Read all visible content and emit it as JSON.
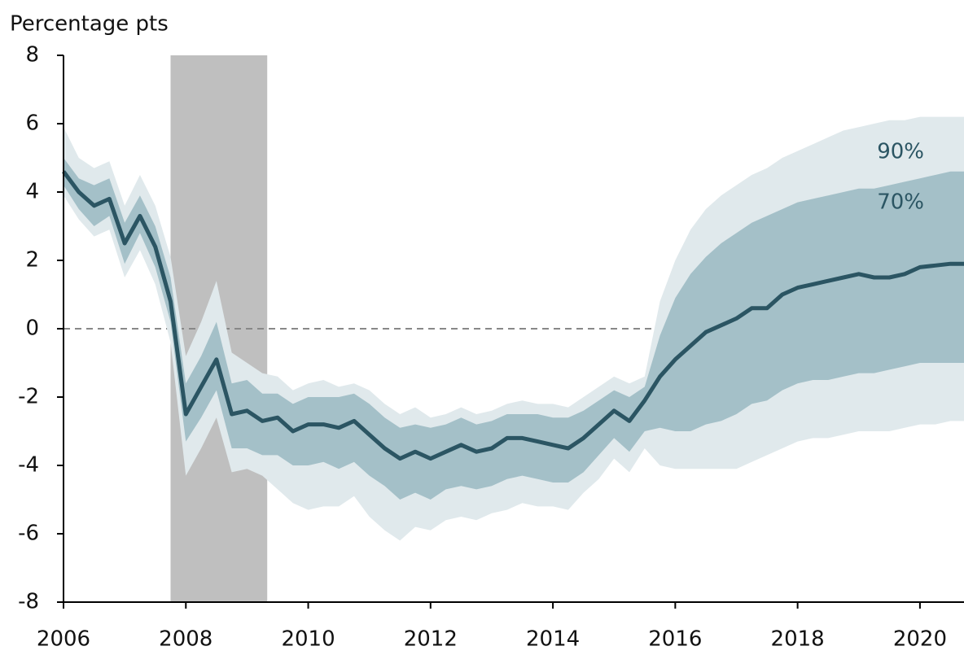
{
  "chart_data": {
    "type": "fan",
    "y_label": "Percentage pts",
    "xlim": [
      2006,
      2020.72
    ],
    "xticks": [
      2006,
      2008,
      2010,
      2012,
      2014,
      2016,
      2018,
      2020
    ],
    "ylim": [
      -8,
      8
    ],
    "yticks": [
      -8,
      -6,
      -4,
      -2,
      0,
      2,
      4,
      6,
      8
    ],
    "zero_line": true,
    "shading": [
      {
        "start": 2007.75,
        "end": 2009.33,
        "color": "#bfbfbf"
      }
    ],
    "x": [
      2006.0,
      2006.25,
      2006.5,
      2006.75,
      2007.0,
      2007.25,
      2007.5,
      2007.75,
      2008.0,
      2008.25,
      2008.5,
      2008.75,
      2009.0,
      2009.25,
      2009.5,
      2009.75,
      2010.0,
      2010.25,
      2010.5,
      2010.75,
      2011.0,
      2011.25,
      2011.5,
      2011.75,
      2012.0,
      2012.25,
      2012.5,
      2012.75,
      2013.0,
      2013.25,
      2013.5,
      2013.75,
      2014.0,
      2014.25,
      2014.5,
      2014.75,
      2015.0,
      2015.25,
      2015.5,
      2015.75,
      2016.0,
      2016.25,
      2016.5,
      2016.75,
      2017.0,
      2017.25,
      2017.5,
      2017.75,
      2018.0,
      2018.25,
      2018.5,
      2018.75,
      2019.0,
      2019.25,
      2019.5,
      2019.75,
      2020.0,
      2020.25,
      2020.5,
      2020.75
    ],
    "series": [
      {
        "name": "90%",
        "color": "#e0e9ec",
        "lower": [
          3.9,
          3.2,
          2.7,
          2.9,
          1.5,
          2.3,
          1.3,
          -0.4,
          -4.3,
          -3.5,
          -2.6,
          -4.2,
          -4.1,
          -4.3,
          -4.7,
          -5.1,
          -5.3,
          -5.2,
          -5.2,
          -4.9,
          -5.5,
          -5.9,
          -6.2,
          -5.8,
          -5.9,
          -5.6,
          -5.5,
          -5.6,
          -5.4,
          -5.3,
          -5.1,
          -5.2,
          -5.2,
          -5.3,
          -4.8,
          -4.4,
          -3.8,
          -4.2,
          -3.5,
          -4.0,
          -4.1,
          -4.1,
          -4.1,
          -4.1,
          -4.1,
          -3.9,
          -3.7,
          -3.5,
          -3.3,
          -3.2,
          -3.2,
          -3.1,
          -3.0,
          -3.0,
          -3.0,
          -2.9,
          -2.8,
          -2.8,
          -2.7,
          -2.7
        ],
        "upper": [
          5.9,
          5.0,
          4.7,
          4.9,
          3.6,
          4.5,
          3.6,
          2.1,
          -0.8,
          0.2,
          1.4,
          -0.7,
          -1.0,
          -1.3,
          -1.4,
          -1.8,
          -1.6,
          -1.5,
          -1.7,
          -1.6,
          -1.8,
          -2.2,
          -2.5,
          -2.3,
          -2.6,
          -2.5,
          -2.3,
          -2.5,
          -2.4,
          -2.2,
          -2.1,
          -2.2,
          -2.2,
          -2.3,
          -2.0,
          -1.7,
          -1.4,
          -1.6,
          -1.4,
          0.8,
          2.0,
          2.9,
          3.5,
          3.9,
          4.2,
          4.5,
          4.7,
          5.0,
          5.2,
          5.4,
          5.6,
          5.8,
          5.9,
          6.0,
          6.1,
          6.1,
          6.2,
          6.2,
          6.2,
          6.2
        ]
      },
      {
        "name": "70%",
        "color": "#a4c0c8",
        "lower": [
          4.2,
          3.5,
          3.0,
          3.3,
          1.9,
          2.8,
          1.8,
          0.2,
          -3.3,
          -2.6,
          -1.8,
          -3.5,
          -3.5,
          -3.7,
          -3.7,
          -4.0,
          -4.0,
          -3.9,
          -4.1,
          -3.9,
          -4.3,
          -4.6,
          -5.0,
          -4.8,
          -5.0,
          -4.7,
          -4.6,
          -4.7,
          -4.6,
          -4.4,
          -4.3,
          -4.4,
          -4.5,
          -4.5,
          -4.2,
          -3.7,
          -3.2,
          -3.6,
          -3.0,
          -2.9,
          -3.0,
          -3.0,
          -2.8,
          -2.7,
          -2.5,
          -2.2,
          -2.1,
          -1.8,
          -1.6,
          -1.5,
          -1.5,
          -1.4,
          -1.3,
          -1.3,
          -1.2,
          -1.1,
          -1.0,
          -1.0,
          -1.0,
          -1.0
        ],
        "upper": [
          5.0,
          4.4,
          4.2,
          4.4,
          3.1,
          3.9,
          3.0,
          1.5,
          -1.6,
          -0.8,
          0.2,
          -1.6,
          -1.5,
          -1.9,
          -1.9,
          -2.2,
          -2.0,
          -2.0,
          -2.0,
          -1.9,
          -2.2,
          -2.6,
          -2.9,
          -2.8,
          -2.9,
          -2.8,
          -2.6,
          -2.8,
          -2.7,
          -2.5,
          -2.5,
          -2.5,
          -2.6,
          -2.6,
          -2.4,
          -2.1,
          -1.8,
          -2.0,
          -1.7,
          -0.2,
          0.9,
          1.6,
          2.1,
          2.5,
          2.8,
          3.1,
          3.3,
          3.5,
          3.7,
          3.8,
          3.9,
          4.0,
          4.1,
          4.1,
          4.2,
          4.3,
          4.4,
          4.5,
          4.6,
          4.6
        ]
      },
      {
        "color": "#2b5563",
        "values": [
          4.6,
          4.0,
          3.6,
          3.8,
          2.5,
          3.3,
          2.4,
          0.8,
          -2.5,
          -1.7,
          -0.9,
          -2.5,
          -2.4,
          -2.7,
          -2.6,
          -3.0,
          -2.8,
          -2.8,
          -2.9,
          -2.7,
          -3.1,
          -3.5,
          -3.8,
          -3.6,
          -3.8,
          -3.6,
          -3.4,
          -3.6,
          -3.5,
          -3.2,
          -3.2,
          -3.3,
          -3.4,
          -3.5,
          -3.2,
          -2.8,
          -2.4,
          -2.7,
          -2.1,
          -1.4,
          -0.9,
          -0.5,
          -0.1,
          0.1,
          0.3,
          0.6,
          0.6,
          1.0,
          1.2,
          1.3,
          1.4,
          1.5,
          1.6,
          1.5,
          1.5,
          1.6,
          1.8,
          1.85,
          1.9,
          1.9
        ]
      }
    ]
  }
}
